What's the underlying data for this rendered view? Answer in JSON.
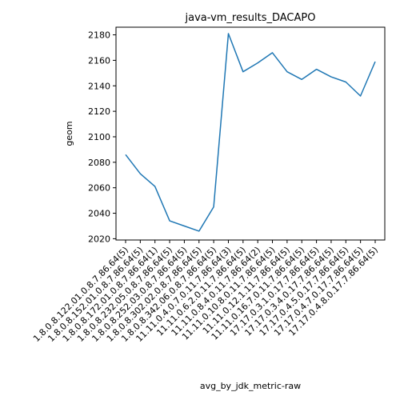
{
  "chart_data": {
    "type": "line",
    "title": "java-vm_results_DACAPO",
    "xlabel": "avg_by_jdk_metric-raw",
    "ylabel": "geom",
    "categories": [
      "1.8.0.8.122.01.0.8.7.86.64(5)",
      "1.8.0.8.152.01.0.8.7.86.64(5)",
      "1.8.0.8.172.01.0.8.7.86.64(1)",
      "1.8.0.8.232.05.0.8.7.86.64(5)",
      "1.8.0.8.252.03.0.8.7.86.64(5)",
      "1.8.0.8.302.02.0.8.7.86.64(5)",
      "1.8.0.8.342.06.0.8.7.86.64(5)",
      "11.11.0.4.0.7.0.11.7.86.64(3)",
      "11.11.0.6.2.0.11.7.86.64(5)",
      "11.11.0.8.4.0.11.7.86.64(2)",
      "11.11.0.10.8.0.11.7.86.64(5)",
      "11.11.0.12.1.11.7.86.64(5)",
      "11.11.0.16.7.0.11.7.86.64(5)",
      "17.17.0.3.1.0.17.7.86.64(5)",
      "17.17.0.3.4.0.17.7.86.64(5)",
      "17.17.0.4.5.0.17.7.86.64(5)",
      "17.17.0.4.7.0.17.7.86.64(5)",
      "17.17.0.4.8.0.17.7.86.64(5)"
    ],
    "series": [
      {
        "color": "#1f77b4",
        "values": [
          2086,
          2071,
          2061,
          2034,
          2030,
          2026,
          2045,
          2181,
          2151,
          2158,
          2166,
          2151,
          2145,
          2153,
          2147,
          2143,
          2132,
          2159
        ]
      }
    ],
    "ylim": [
      2019,
      2186
    ],
    "yticks": [
      2020,
      2040,
      2060,
      2080,
      2100,
      2120,
      2140,
      2160,
      2180
    ],
    "grid": false,
    "legend": "none"
  }
}
